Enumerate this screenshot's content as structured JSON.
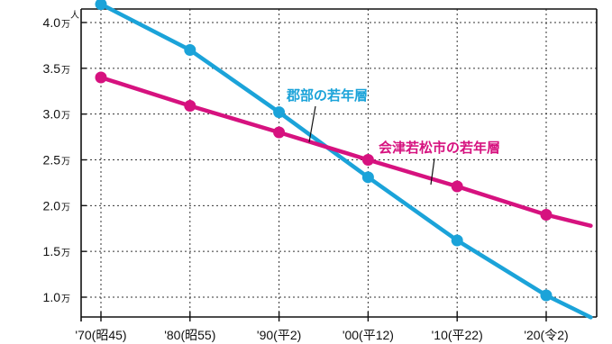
{
  "chart_data": {
    "type": "line",
    "ylabel": "人",
    "y_unit": "万",
    "ylim": [
      0.8,
      4.3
    ],
    "yticks": [
      1.0,
      1.5,
      2.0,
      2.5,
      3.0,
      3.5,
      4.0
    ],
    "ytick_labels": [
      "1.0",
      "1.5",
      "2.0",
      "2.5",
      "3.0",
      "3.5",
      "4.0"
    ],
    "x": [
      1970,
      1980,
      1990,
      2000,
      2010,
      2020
    ],
    "x_tick_labels": [
      "'70(昭45)",
      "'80(昭55)",
      "'90(平2)",
      "'00(平12)",
      "'10(平22)",
      "'20(令2)"
    ],
    "xlim": [
      1965,
      2025
    ],
    "grid": true,
    "series": [
      {
        "name": "郡部の若年層",
        "color": "#1ba3d9",
        "x": [
          1970,
          1980,
          1990,
          2000,
          2010,
          2020
        ],
        "values": [
          4.2,
          3.7,
          3.02,
          2.31,
          1.62,
          1.02
        ],
        "line_end": {
          "x": 2025,
          "y": 0.78
        }
      },
      {
        "name": "会津若松市の若年層",
        "color": "#d6127f",
        "x": [
          1970,
          1980,
          1990,
          2000,
          2010,
          2020
        ],
        "values": [
          3.4,
          3.09,
          2.8,
          2.5,
          2.21,
          1.9
        ],
        "line_end": {
          "x": 2025,
          "y": 1.78
        }
      }
    ]
  }
}
